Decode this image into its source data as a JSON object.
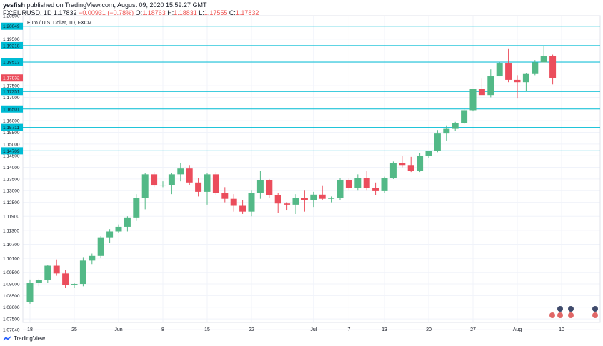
{
  "header": {
    "author": "yesfish",
    "published": "published on TradingView.com, August 09, 2020 15:59:27 GMT",
    "symbol": "FX:EURUSD, 1D",
    "last": "1.17832",
    "change": "−0.00931 (−0.78%)",
    "o_label": "O:",
    "o": "1.18763",
    "h_label": "H:",
    "h": "1.18831",
    "l_label": "L:",
    "l": "1.17555",
    "c_label": "C:",
    "c": "1.17832"
  },
  "footer": {
    "brand": "TradingView"
  },
  "colors": {
    "up": "#53b987",
    "down": "#eb4d5c",
    "hline": "#00bcd4",
    "last": "#eb4d5c",
    "grid": "#f0f3fa",
    "axis_text": "#131722"
  },
  "chart_data": {
    "type": "candlestick",
    "title": "Euro / U.S. Dollar, 1D, FXCM",
    "y_range": [
      1.0735,
      1.205
    ],
    "y_ticks": [
      "1.20500",
      "1.19500",
      "1.18500",
      "1.17500",
      "1.17000",
      "1.16000",
      "1.15500",
      "1.15000",
      "1.14500",
      "1.14000",
      "1.13500",
      "1.13000",
      "1.12500",
      "1.11900",
      "1.11300",
      "1.10700",
      "1.10100",
      "1.09500",
      "1.09000",
      "1.08500",
      "1.08000",
      "1.07500",
      "1.07040"
    ],
    "x_ticks": [
      {
        "label": "18",
        "index": 0
      },
      {
        "label": "25",
        "index": 5
      },
      {
        "label": "Jun",
        "index": 10
      },
      {
        "label": "8",
        "index": 15
      },
      {
        "label": "15",
        "index": 20
      },
      {
        "label": "22",
        "index": 25
      },
      {
        "label": "Jul",
        "index": 32
      },
      {
        "label": "7",
        "index": 36
      },
      {
        "label": "13",
        "index": 40
      },
      {
        "label": "20",
        "index": 45
      },
      {
        "label": "27",
        "index": 50
      },
      {
        "label": "Aug",
        "index": 55
      },
      {
        "label": "10",
        "index": 60
      }
    ],
    "levels": [
      {
        "label": "1.20049",
        "value": 1.20049
      },
      {
        "label": "1.19218",
        "value": 1.19218
      },
      {
        "label": "1.18513",
        "value": 1.18513
      },
      {
        "label": "1.17251",
        "value": 1.17251
      },
      {
        "label": "1.16501",
        "value": 1.16501
      },
      {
        "label": "1.15711",
        "value": 1.15711
      },
      {
        "label": "1.14709",
        "value": 1.14709
      }
    ],
    "last_price": {
      "label": "1.17832",
      "value": 1.17832
    },
    "candles": [
      [
        1.0822,
        1.0919,
        1.0815,
        1.0906
      ],
      [
        1.0906,
        1.0922,
        1.089,
        1.0917
      ],
      [
        1.0917,
        1.098,
        1.0905,
        1.0978
      ],
      [
        1.0978,
        1.1005,
        1.0935,
        1.0945
      ],
      [
        1.0945,
        1.096,
        1.0882,
        1.0895
      ],
      [
        1.0895,
        1.0905,
        1.0885,
        1.09
      ],
      [
        1.09,
        1.1015,
        1.089,
        1.1
      ],
      [
        1.1,
        1.103,
        1.0985,
        1.102
      ],
      [
        1.102,
        1.1105,
        1.101,
        1.11
      ],
      [
        1.11,
        1.1135,
        1.1075,
        1.1125
      ],
      [
        1.1125,
        1.1155,
        1.112,
        1.1145
      ],
      [
        1.1145,
        1.119,
        1.1125,
        1.1185
      ],
      [
        1.1185,
        1.1285,
        1.117,
        1.127
      ],
      [
        1.127,
        1.1375,
        1.122,
        1.137
      ],
      [
        1.137,
        1.138,
        1.1315,
        1.1322
      ],
      [
        1.1322,
        1.134,
        1.1315,
        1.1325
      ],
      [
        1.1325,
        1.1375,
        1.1285,
        1.137
      ],
      [
        1.137,
        1.142,
        1.134,
        1.1395
      ],
      [
        1.1395,
        1.141,
        1.1325,
        1.1335
      ],
      [
        1.1335,
        1.1355,
        1.1275,
        1.1295
      ],
      [
        1.1295,
        1.1375,
        1.124,
        1.137
      ],
      [
        1.137,
        1.138,
        1.128,
        1.129
      ],
      [
        1.129,
        1.1315,
        1.125,
        1.1265
      ],
      [
        1.1265,
        1.1285,
        1.121,
        1.1235
      ],
      [
        1.1235,
        1.126,
        1.12,
        1.121
      ],
      [
        1.121,
        1.13,
        1.119,
        1.129
      ],
      [
        1.129,
        1.1385,
        1.1265,
        1.1345
      ],
      [
        1.1345,
        1.135,
        1.127,
        1.128
      ],
      [
        1.128,
        1.129,
        1.1205,
        1.1245
      ],
      [
        1.1245,
        1.125,
        1.1215,
        1.124
      ],
      [
        1.124,
        1.1285,
        1.12,
        1.127
      ],
      [
        1.127,
        1.13,
        1.121,
        1.1258
      ],
      [
        1.1258,
        1.1295,
        1.123,
        1.1283
      ],
      [
        1.1283,
        1.132,
        1.126,
        1.1265
      ],
      [
        1.1265,
        1.1275,
        1.125,
        1.1268
      ],
      [
        1.1268,
        1.1355,
        1.126,
        1.1345
      ],
      [
        1.1345,
        1.1355,
        1.13,
        1.131
      ],
      [
        1.131,
        1.137,
        1.13,
        1.1355
      ],
      [
        1.1355,
        1.1385,
        1.13,
        1.131
      ],
      [
        1.131,
        1.1335,
        1.128,
        1.1298
      ],
      [
        1.1298,
        1.136,
        1.129,
        1.1355
      ],
      [
        1.1355,
        1.1425,
        1.135,
        1.142
      ],
      [
        1.142,
        1.145,
        1.14,
        1.141
      ],
      [
        1.141,
        1.1445,
        1.138,
        1.1385
      ],
      [
        1.1385,
        1.146,
        1.138,
        1.145
      ],
      [
        1.145,
        1.147,
        1.144,
        1.147
      ],
      [
        1.147,
        1.156,
        1.1465,
        1.1545
      ],
      [
        1.1545,
        1.158,
        1.1515,
        1.1565
      ],
      [
        1.1565,
        1.1595,
        1.1555,
        1.159
      ],
      [
        1.159,
        1.1655,
        1.1585,
        1.1645
      ],
      [
        1.1645,
        1.1735,
        1.164,
        1.1735
      ],
      [
        1.1735,
        1.178,
        1.172,
        1.171
      ],
      [
        1.171,
        1.182,
        1.17,
        1.179
      ],
      [
        1.179,
        1.185,
        1.179,
        1.1845
      ],
      [
        1.1845,
        1.191,
        1.1765,
        1.1775
      ],
      [
        1.1775,
        1.1795,
        1.1695,
        1.1765
      ],
      [
        1.1765,
        1.1805,
        1.1725,
        1.18
      ],
      [
        1.18,
        1.186,
        1.1795,
        1.185
      ],
      [
        1.185,
        1.192,
        1.185,
        1.1876
      ],
      [
        1.18763,
        1.18831,
        1.17555,
        1.17832
      ]
    ]
  }
}
